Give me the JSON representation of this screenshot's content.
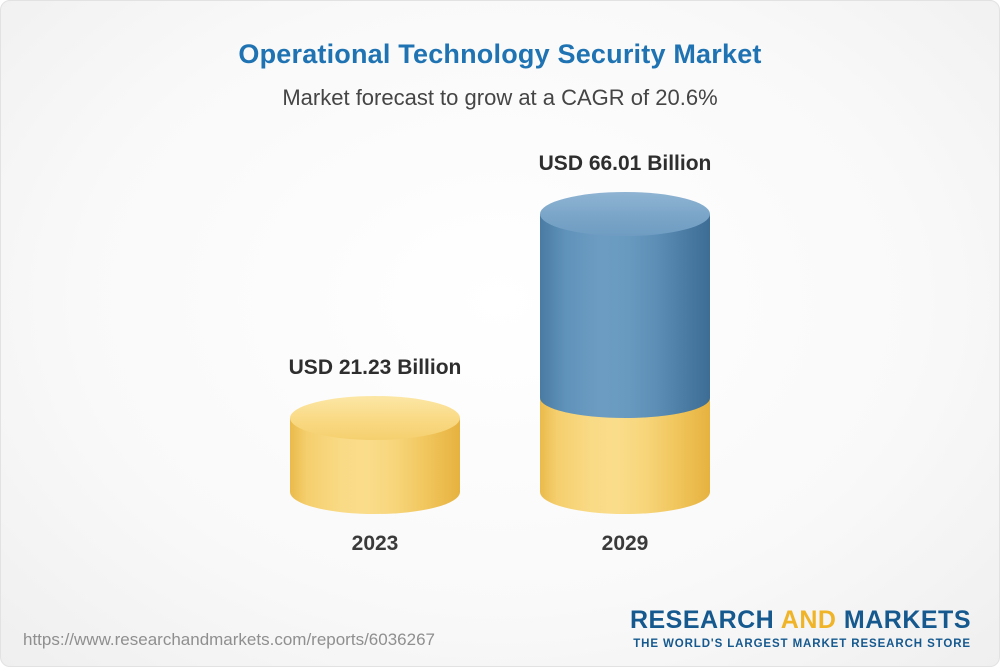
{
  "header": {
    "title": "Operational Technology Security Market",
    "subtitle": "Market forecast to grow at a CAGR of 20.6%"
  },
  "chart_data": {
    "type": "bar",
    "variant": "3d-cylinder",
    "title": "Operational Technology Security Market",
    "subtitle": "Market forecast to grow at a CAGR of 20.6%",
    "cagr_percent": 20.6,
    "categories": [
      "2023",
      "2029"
    ],
    "values": [
      21.23,
      66.01
    ],
    "value_labels": [
      "USD 21.23 Billion",
      "USD 66.01 Billion"
    ],
    "unit": "USD Billion",
    "ylim": [
      0,
      66.01
    ],
    "grid": false,
    "legend": false,
    "colors": {
      "bar_2023": "#f6cf6e",
      "bar_2029_growth": "#5d8fb6",
      "bar_2029_base": "#f6cf6e",
      "title_text": "#1f73b2"
    }
  },
  "footer": {
    "url": "https://www.researchandmarkets.com/reports/6036267",
    "logo": {
      "part1": "RESEARCH",
      "part2": "AND",
      "part3": "MARKETS",
      "tagline": "THE WORLD'S LARGEST MARKET RESEARCH STORE"
    }
  }
}
